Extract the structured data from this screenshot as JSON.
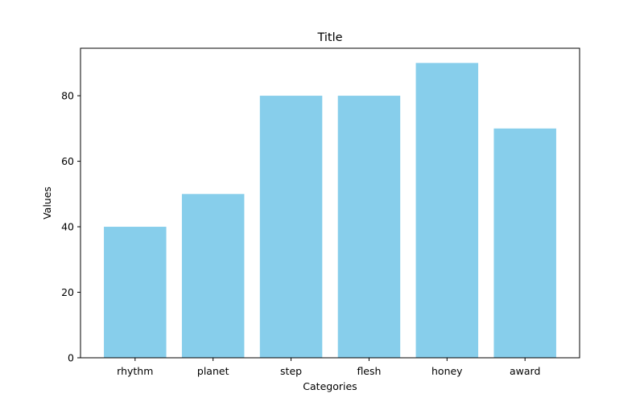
{
  "chart_data": {
    "type": "bar",
    "title": "Title",
    "xlabel": "Categories",
    "ylabel": "Values",
    "categories": [
      "rhythm",
      "planet",
      "step",
      "flesh",
      "honey",
      "award"
    ],
    "values": [
      40,
      50,
      80,
      80,
      90,
      70
    ],
    "ylim": [
      0,
      94.5
    ],
    "yticks": [
      0,
      20,
      40,
      60,
      80
    ],
    "bar_color": "#87CEEB",
    "grid": false,
    "legend": "none"
  }
}
